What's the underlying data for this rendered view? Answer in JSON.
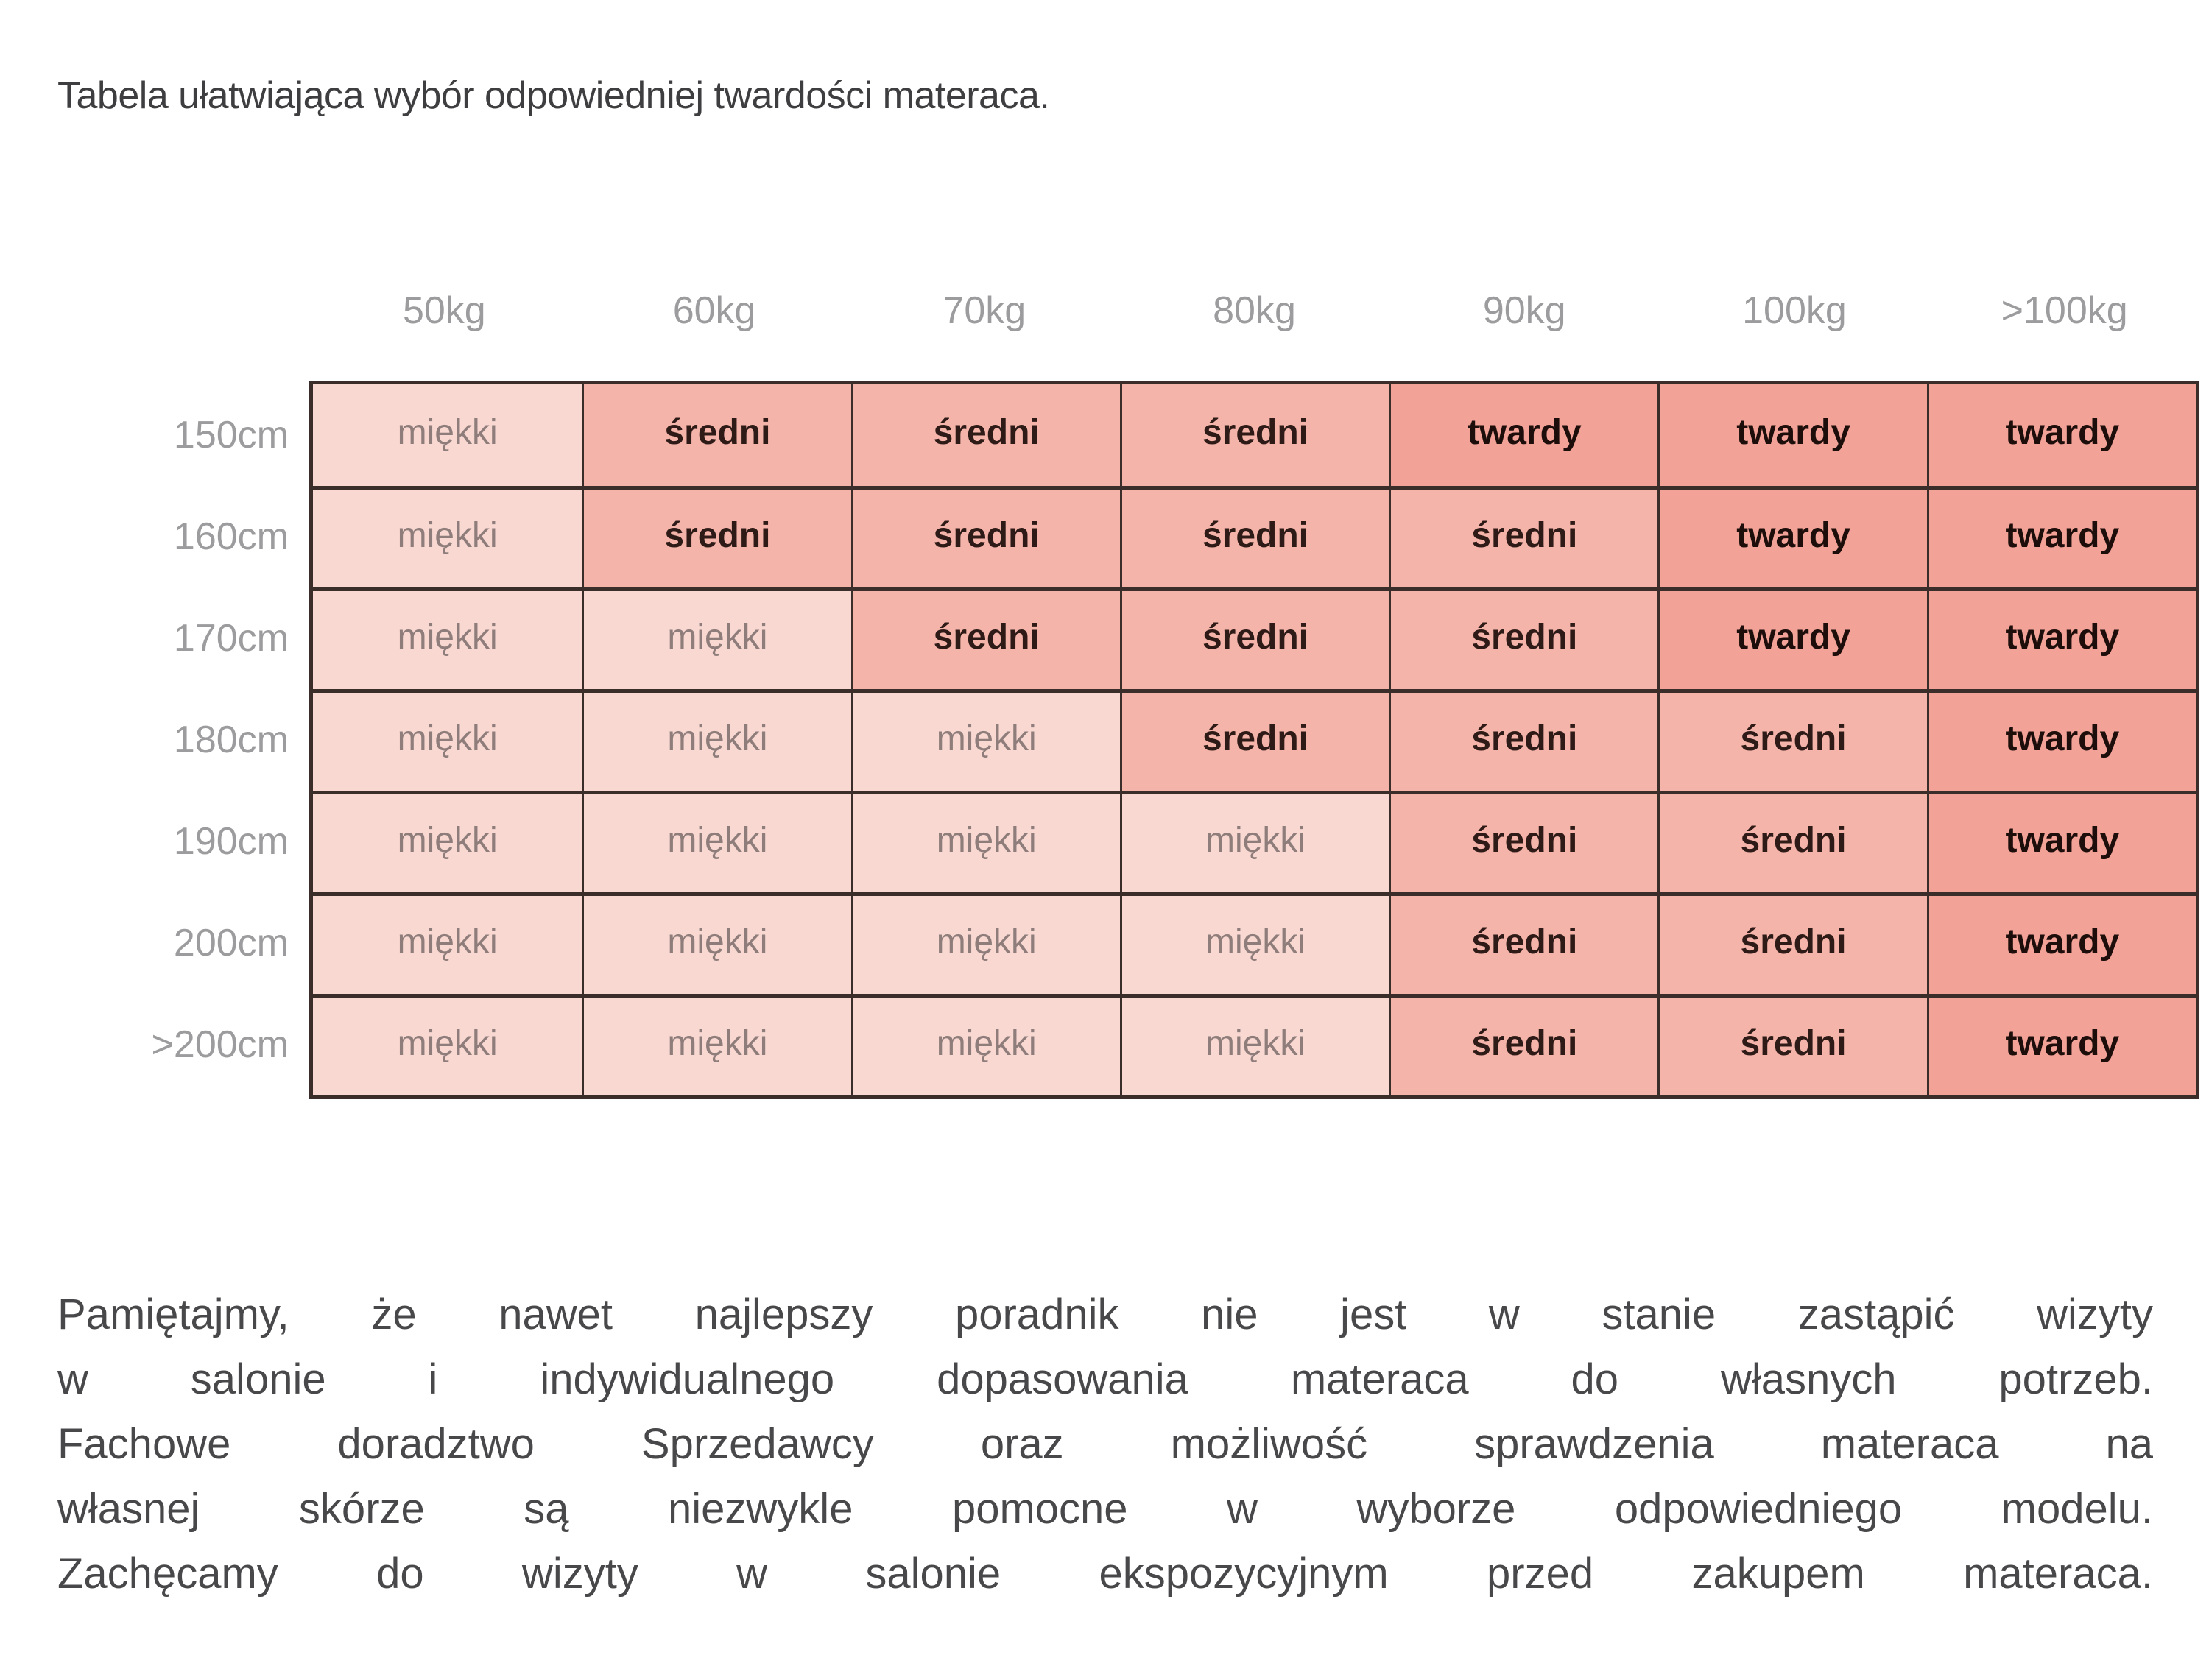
{
  "title": "Tabela ułatwiająca wybór odpowiedniej twardości materaca.",
  "matrix": {
    "column_headers": [
      "50kg",
      "60kg",
      "70kg",
      "80kg",
      "90kg",
      "100kg",
      ">100kg"
    ],
    "row_headers": [
      "150cm",
      "160cm",
      "170cm",
      "180cm",
      "190cm",
      "200cm",
      ">200cm"
    ],
    "cells": [
      [
        "miękki",
        "średni",
        "średni",
        "średni",
        "twardy",
        "twardy",
        "twardy"
      ],
      [
        "miękki",
        "średni",
        "średni",
        "średni",
        "średni",
        "twardy",
        "twardy"
      ],
      [
        "miękki",
        "miękki",
        "średni",
        "średni",
        "średni",
        "twardy",
        "twardy"
      ],
      [
        "miękki",
        "miękki",
        "miękki",
        "średni",
        "średni",
        "średni",
        "twardy"
      ],
      [
        "miękki",
        "miękki",
        "miękki",
        "miękki",
        "średni",
        "średni",
        "twardy"
      ],
      [
        "miękki",
        "miękki",
        "miękki",
        "miękki",
        "średni",
        "średni",
        "twardy"
      ],
      [
        "miękki",
        "miękki",
        "miękki",
        "miękki",
        "średni",
        "średni",
        "twardy"
      ]
    ],
    "styles": {
      "miękki": {
        "bg": "#f9d8d2",
        "text": "#8e7d7a",
        "bold": false
      },
      "średni": {
        "bg": "#f5b4aa",
        "text": "#2e1b17",
        "bold": true
      },
      "twardy": {
        "bg": "#f2a297",
        "text": "#1d0e0b",
        "bold": true
      }
    },
    "grid_color": "#3a2d2a",
    "header_color": "#9c9c9e"
  },
  "paragraph": {
    "lines": [
      "Pamiętajmy, że nawet najlepszy poradnik nie jest w stanie zastąpić wizyty",
      "w salonie i indywidualnego dopasowania materaca do własnych potrzeb.",
      "Fachowe doradztwo Sprzedawcy oraz możliwość sprawdzenia materaca na",
      "własnej skórze są niezwykle pomocne w wyborze odpowiedniego modelu.",
      "Zachęcamy do wizyty w salonie ekspozycyjnym przed zakupem materaca."
    ]
  },
  "chart_data": {
    "type": "table",
    "title": "Tabela ułatwiająca wybór odpowiedniej twardości materaca.",
    "columns": [
      "50kg",
      "60kg",
      "70kg",
      "80kg",
      "90kg",
      "100kg",
      ">100kg"
    ],
    "rows": [
      "150cm",
      "160cm",
      "170cm",
      "180cm",
      "190cm",
      "200cm",
      ">200cm"
    ],
    "values": [
      [
        "miękki",
        "średni",
        "średni",
        "średni",
        "twardy",
        "twardy",
        "twardy"
      ],
      [
        "miękki",
        "średni",
        "średni",
        "średni",
        "średni",
        "twardy",
        "twardy"
      ],
      [
        "miękki",
        "miękki",
        "średni",
        "średni",
        "średni",
        "twardy",
        "twardy"
      ],
      [
        "miękki",
        "miękki",
        "miękki",
        "średni",
        "średni",
        "średni",
        "twardy"
      ],
      [
        "miękki",
        "miękki",
        "miękki",
        "miękki",
        "średni",
        "średni",
        "twardy"
      ],
      [
        "miękki",
        "miękki",
        "miękki",
        "miękki",
        "średni",
        "średni",
        "twardy"
      ],
      [
        "miękki",
        "miękki",
        "miękki",
        "miękki",
        "średni",
        "średni",
        "twardy"
      ]
    ],
    "legend": {
      "miękki": "#f9d8d2",
      "średni": "#f5b4aa",
      "twardy": "#f2a297"
    }
  }
}
